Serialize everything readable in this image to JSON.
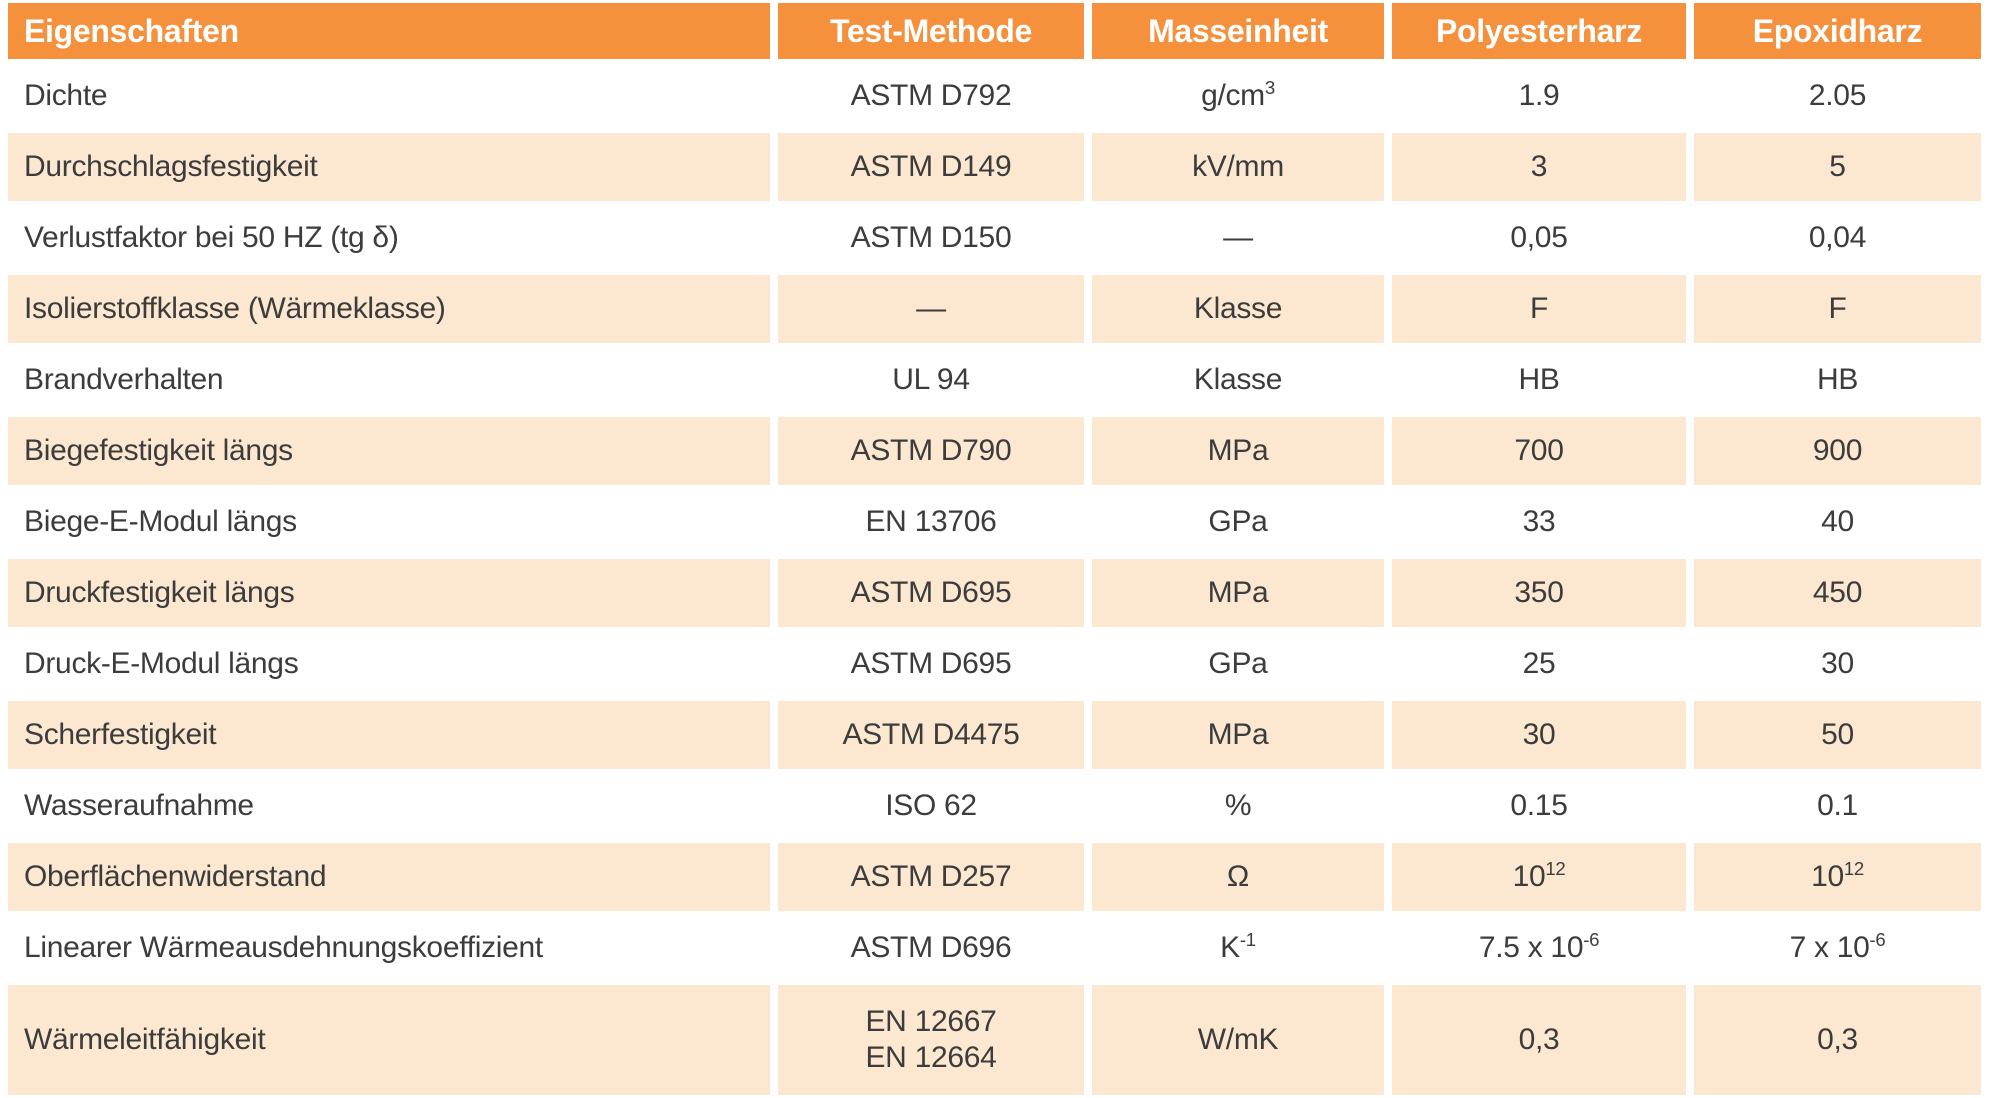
{
  "table": {
    "columns": [
      "Eigenschaften",
      "Test-Methode",
      "Masseinheit",
      "Polyesterharz",
      "Epoxidharz"
    ],
    "rows": [
      {
        "property": "Dichte",
        "method": "ASTM D792",
        "unit": "g/cm^{3}",
        "polyesterharz": "1.9",
        "epoxidharz": "2.05"
      },
      {
        "property": "Durchschlagsfestigkeit",
        "method": "ASTM D149",
        "unit": "kV/mm",
        "polyesterharz": "3",
        "epoxidharz": "5"
      },
      {
        "property": "Verlustfaktor bei 50 HZ (tg δ)",
        "method": "ASTM D150",
        "unit": "—",
        "polyesterharz": "0,05",
        "epoxidharz": "0,04"
      },
      {
        "property": "Isolierstoffklasse (Wärmeklasse)",
        "method": "—",
        "unit": "Klasse",
        "polyesterharz": "F",
        "epoxidharz": "F"
      },
      {
        "property": "Brandverhalten",
        "method": "UL 94",
        "unit": "Klasse",
        "polyesterharz": "HB",
        "epoxidharz": "HB"
      },
      {
        "property": "Biegefestigkeit längs",
        "method": "ASTM D790",
        "unit": "MPa",
        "polyesterharz": "700",
        "epoxidharz": "900"
      },
      {
        "property": "Biege-E-Modul längs",
        "method": "EN 13706",
        "unit": "GPa",
        "polyesterharz": "33",
        "epoxidharz": "40"
      },
      {
        "property": "Druckfestigkeit längs",
        "method": "ASTM D695",
        "unit": "MPa",
        "polyesterharz": "350",
        "epoxidharz": "450"
      },
      {
        "property": "Druck-E-Modul längs",
        "method": "ASTM D695",
        "unit": "GPa",
        "polyesterharz": "25",
        "epoxidharz": "30"
      },
      {
        "property": "Scherfestigkeit",
        "method": "ASTM D4475",
        "unit": "MPa",
        "polyesterharz": "30",
        "epoxidharz": "50"
      },
      {
        "property": "Wasseraufnahme",
        "method": "ISO 62",
        "unit": "%",
        "polyesterharz": "0.15",
        "epoxidharz": "0.1"
      },
      {
        "property": "Oberflächenwiderstand",
        "method": "ASTM D257",
        "unit": "Ω",
        "polyesterharz": "10^{12}",
        "epoxidharz": "10^{12}"
      },
      {
        "property": "Linearer Wärmeausdehnungskoeffizient",
        "method": "ASTM D696",
        "unit": "K^{-1}",
        "polyesterharz": "7.5 x 10^{-6}",
        "epoxidharz": "7 x 10^{-6}"
      },
      {
        "property": "Wärmeleitfähigkeit",
        "method": "EN 12667\nEN 12664",
        "unit": "W/mK",
        "polyesterharz": "0,3",
        "epoxidharz": "0,3"
      }
    ],
    "colors": {
      "header_bg": "#F5913C",
      "header_text": "#FFFFFF",
      "row_bg": "#FFFFFF",
      "row_alt_bg": "#FCE8D1",
      "text": "#3C3C3C"
    }
  }
}
